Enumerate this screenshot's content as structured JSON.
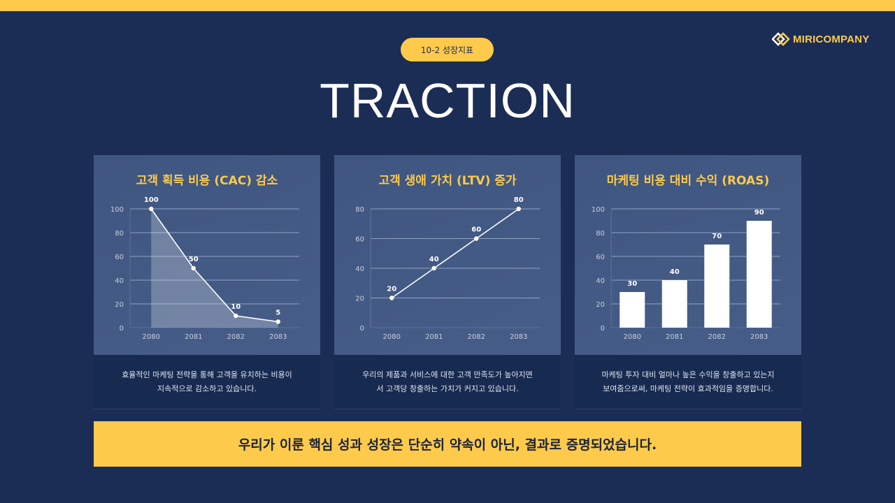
{
  "header": {
    "section_pill": "10-2 성장지표",
    "title": "TRACTION",
    "logo_text": "MIRICOMPANY"
  },
  "colors": {
    "background": "#1b2d55",
    "accent": "#fdca4c",
    "card": "#435a85",
    "card_footer": "#172a4f"
  },
  "cards": [
    {
      "title": "고객 획득 비용 (CAC) 감소",
      "desc_line1": "효율적인 마케팅 전략을 통해 고객을 유치하는 비용이",
      "desc_line2": "지속적으로 감소하고 있습니다."
    },
    {
      "title": "고객 생애 가치 (LTV) 증가",
      "desc_line1": "우리의 제품과 서비스에 대한 고객 만족도가 높아지면",
      "desc_line2": "서 고객당 창출하는 가치가 커지고 있습니다."
    },
    {
      "title": "마케팅 비용 대비 수익 (ROAS)",
      "desc_line1": "마케팅 투자 대비 얼마나 높은 수익을 창출하고 있는지",
      "desc_line2": "보여줌으로써, 마케팅 전략이 효과적임을 증명합니다."
    }
  ],
  "banner": {
    "text": "우리가 이룬 핵심 성과 성장은 단순히 약속이 아닌, 결과로 증명되었습니다."
  },
  "chart_data": [
    {
      "type": "area",
      "title": "고객 획득 비용 (CAC) 감소",
      "categories": [
        "2080",
        "2081",
        "2082",
        "2083"
      ],
      "values": [
        100,
        50,
        10,
        5
      ],
      "data_labels": [
        "100",
        "50",
        "10",
        "5"
      ],
      "yticks": [
        "0",
        "20",
        "40",
        "60",
        "80",
        "100"
      ],
      "ylim": [
        0,
        100
      ],
      "xlabel": "",
      "ylabel": "",
      "grid": true,
      "legend": "none"
    },
    {
      "type": "line",
      "title": "고객 생애 가치 (LTV) 증가",
      "categories": [
        "2080",
        "2081",
        "2082",
        "2083"
      ],
      "values": [
        20,
        40,
        60,
        80
      ],
      "data_labels": [
        "20",
        "40",
        "60",
        "80"
      ],
      "yticks": [
        "0",
        "20",
        "40",
        "60",
        "80"
      ],
      "ylim": [
        0,
        80
      ],
      "xlabel": "",
      "ylabel": "",
      "grid": true,
      "legend": "none"
    },
    {
      "type": "bar",
      "title": "마케팅 비용 대비 수익 (ROAS)",
      "categories": [
        "2080",
        "2081",
        "2082",
        "2083"
      ],
      "values": [
        30,
        40,
        70,
        90
      ],
      "data_labels": [
        "30",
        "40",
        "70",
        "90"
      ],
      "yticks": [
        "0",
        "20",
        "40",
        "60",
        "80",
        "100"
      ],
      "ylim": [
        0,
        100
      ],
      "xlabel": "",
      "ylabel": "",
      "grid": true,
      "legend": "none"
    }
  ]
}
